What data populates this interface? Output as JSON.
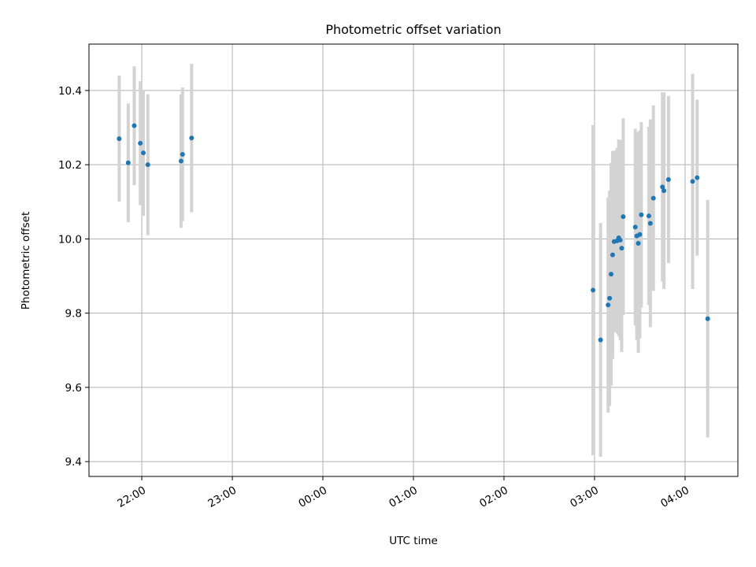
{
  "chart_data": {
    "type": "scatter",
    "title": "Photometric offset variation",
    "xlabel": "UTC time",
    "ylabel": "Photometric offset",
    "x_type": "time",
    "x_range": [
      "21:25",
      "04:35"
    ],
    "ylim": [
      9.36,
      10.525
    ],
    "x_ticks": [
      "22:00",
      "23:00",
      "00:00",
      "01:00",
      "02:00",
      "03:00",
      "04:00"
    ],
    "y_ticks": [
      "9.4",
      "9.6",
      "9.8",
      "10.0",
      "10.2",
      "10.4"
    ],
    "grid": true,
    "point_color": "#1f77b4",
    "errorbar_color": "#d3d3d3",
    "points": [
      {
        "t": "21:45",
        "y": 10.27,
        "err": 0.17
      },
      {
        "t": "21:51",
        "y": 10.205,
        "err": 0.16
      },
      {
        "t": "21:55",
        "y": 10.305,
        "err": 0.16
      },
      {
        "t": "21:59",
        "y": 10.258,
        "err": 0.167
      },
      {
        "t": "22:01",
        "y": 10.232,
        "err": 0.17
      },
      {
        "t": "22:04",
        "y": 10.2,
        "err": 0.19
      },
      {
        "t": "22:26",
        "y": 10.21,
        "err": 0.18
      },
      {
        "t": "22:27",
        "y": 10.228,
        "err": 0.18
      },
      {
        "t": "22:33",
        "y": 10.272,
        "err": 0.2
      },
      {
        "t": "02:59",
        "y": 9.862,
        "err": 0.445
      },
      {
        "t": "03:04",
        "y": 9.728,
        "err": 0.315
      },
      {
        "t": "03:09",
        "y": 9.822,
        "err": 0.29
      },
      {
        "t": "03:10",
        "y": 9.84,
        "err": 0.29
      },
      {
        "t": "03:11",
        "y": 9.905,
        "err": 0.3
      },
      {
        "t": "03:12",
        "y": 9.957,
        "err": 0.28
      },
      {
        "t": "03:13",
        "y": 9.993,
        "err": 0.245
      },
      {
        "t": "03:15",
        "y": 9.995,
        "err": 0.25
      },
      {
        "t": "03:16",
        "y": 10.003,
        "err": 0.265
      },
      {
        "t": "03:17",
        "y": 9.997,
        "err": 0.27
      },
      {
        "t": "03:18",
        "y": 9.975,
        "err": 0.28
      },
      {
        "t": "03:19",
        "y": 10.06,
        "err": 0.265
      },
      {
        "t": "03:27",
        "y": 10.032,
        "err": 0.265
      },
      {
        "t": "03:28",
        "y": 10.008,
        "err": 0.28
      },
      {
        "t": "03:29",
        "y": 9.988,
        "err": 0.295
      },
      {
        "t": "03:30",
        "y": 10.012,
        "err": 0.28
      },
      {
        "t": "03:31",
        "y": 10.065,
        "err": 0.25
      },
      {
        "t": "03:36",
        "y": 10.062,
        "err": 0.24
      },
      {
        "t": "03:37",
        "y": 10.042,
        "err": 0.28
      },
      {
        "t": "03:39",
        "y": 10.11,
        "err": 0.25
      },
      {
        "t": "03:45",
        "y": 10.14,
        "err": 0.255
      },
      {
        "t": "03:46",
        "y": 10.13,
        "err": 0.265
      },
      {
        "t": "03:49",
        "y": 10.16,
        "err": 0.225
      },
      {
        "t": "04:05",
        "y": 10.155,
        "err": 0.29
      },
      {
        "t": "04:08",
        "y": 10.165,
        "err": 0.21
      },
      {
        "t": "04:15",
        "y": 9.785,
        "err": 0.32
      }
    ]
  }
}
